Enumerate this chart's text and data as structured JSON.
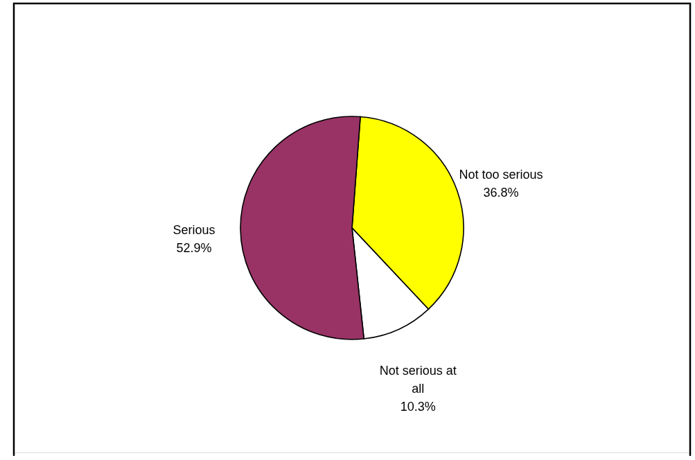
{
  "chart_data": {
    "type": "pie",
    "categories": [
      "Not too serious",
      "Not serious at all",
      "Serious"
    ],
    "values": [
      36.8,
      10.3,
      52.9
    ],
    "colors": [
      "#ffff00",
      "#ffffff",
      "#993366"
    ],
    "value_labels": [
      "36.8%",
      "10.3%",
      "52.9%"
    ]
  }
}
